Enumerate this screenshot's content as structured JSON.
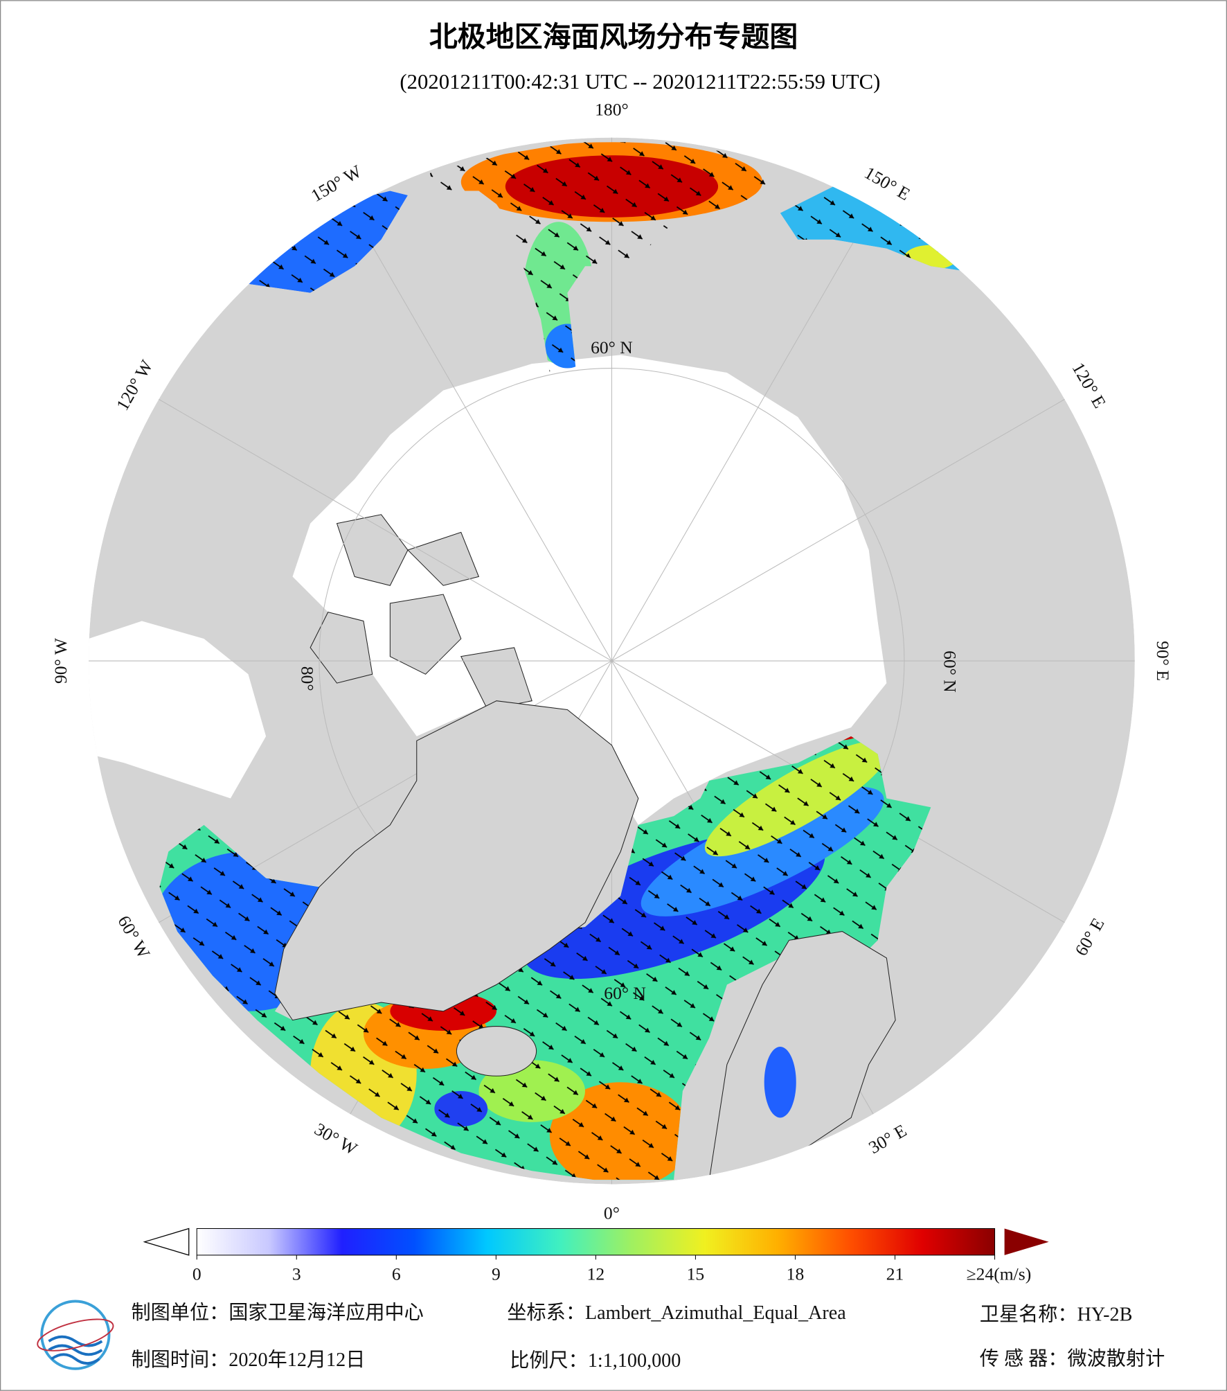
{
  "title": "北极地区海面风场分布专题图",
  "subtitle": "(20201211T00:42:31 UTC -- 20201211T22:55:59 UTC)",
  "map": {
    "longitude_labels": [
      "0°",
      "30° E",
      "60° E",
      "90° E",
      "120° E",
      "150° E",
      "180°",
      "150° W",
      "120° W",
      "90° W",
      "60° W",
      "30° W"
    ],
    "latitude_labels": [
      "60° N",
      "60° N",
      "60° N",
      "80°"
    ]
  },
  "colorbar": {
    "range": [
      0,
      24
    ],
    "ticks": [
      0,
      3,
      6,
      9,
      12,
      15,
      18,
      21,
      {
        "value": 24,
        "label": "≥24(m/s)"
      }
    ],
    "colors": [
      "#ffffff",
      "#c8c8ff",
      "#2020ff",
      "#0050ff",
      "#00c8ff",
      "#40f0c0",
      "#a0f060",
      "#f0f020",
      "#ffb000",
      "#ff5000",
      "#e00000",
      "#8a0000"
    ]
  },
  "footer": {
    "producer": "制图单位：国家卫星海洋应用中心",
    "projection": "坐标系：Lambert_Azimuthal_Equal_Area",
    "satellite": "卫星名称：HY-2B",
    "date": "制图时间：2020年12月12日",
    "scale": "比例尺：1:1,100,000",
    "sensor": "传 感 器：微波散射计"
  }
}
